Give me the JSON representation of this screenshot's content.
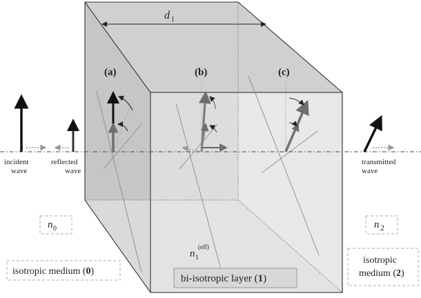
{
  "labels": {
    "thickness": "d",
    "thickness_sub": "1",
    "case_a": "(a)",
    "case_b": "(b)",
    "case_c": "(c)",
    "incident_1": "incident",
    "incident_2": "wave",
    "reflected_1": "reflected",
    "reflected_2": "wave",
    "transmitted_1": "transmitted",
    "transmitted_2": "wave",
    "n0": "n",
    "n0_sub": "0",
    "n1": "n",
    "n1_sub": "1",
    "n1_sup": "(eff)",
    "n2": "n",
    "n2_sub": "2",
    "medium0_text": "isotropic medium (",
    "medium0_num": "0",
    "medium0_close": ")",
    "layer1_text": "bi-isotropic layer (",
    "layer1_num": "1",
    "layer1_close": ")",
    "medium2_line1": "isotropic",
    "medium2_line2": "medium (",
    "medium2_num": "2",
    "medium2_close": ")"
  },
  "colors": {
    "back_face": "#b5b5b5",
    "left_face": "#c8c8c8",
    "top_face": "#d2d2d2",
    "front_face": "#e2e2e2",
    "edge": "#333333",
    "arrow_dark": "#111111",
    "arrow_mid": "#6e6e6e",
    "arrow_light": "#9a9a9a"
  }
}
